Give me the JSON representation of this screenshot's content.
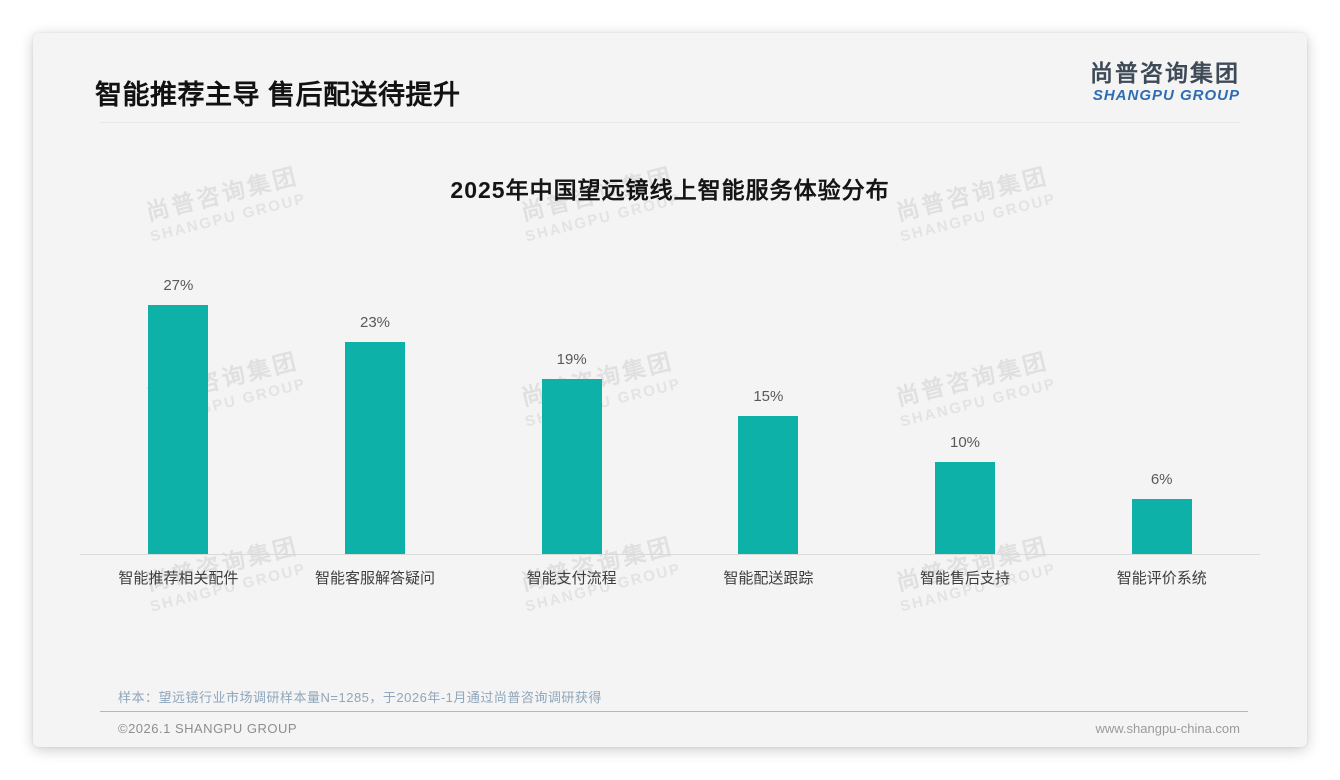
{
  "page": {
    "header": {
      "title": "智能推荐主导 售后配送待提升"
    },
    "logo": {
      "cn": "尚普咨询集团",
      "en": "SHANGPU GROUP"
    },
    "watermark": {
      "cn": "尚普咨询集团",
      "en": "SHANGPU GROUP"
    },
    "footnote": "样本：望远镜行业市场调研样本量N=1285，于2026年-1月通过尚普咨询调研获得",
    "footer": {
      "left": "©2026.1 SHANGPU GROUP",
      "right": "www.shangpu-china.com"
    }
  },
  "chart_data": {
    "type": "bar",
    "title": "2025年中国望远镜线上智能服务体验分布",
    "categories": [
      "智能推荐相关配件",
      "智能客服解答疑问",
      "智能支付流程",
      "智能配送跟踪",
      "智能售后支持",
      "智能评价系统"
    ],
    "values": [
      27,
      23,
      19,
      15,
      10,
      6
    ],
    "value_suffix": "%",
    "xlabel": "",
    "ylabel": "",
    "ylim": [
      0,
      30
    ],
    "grid": false,
    "legend": false,
    "bar_color": "#0db1a7"
  },
  "colors": {
    "bar": "#0db1a7",
    "logo_cn": "#3e4a57",
    "logo_en": "#2e6cb4",
    "footnote": "#8fa6bb",
    "footer_divider": "#a9bac9"
  }
}
